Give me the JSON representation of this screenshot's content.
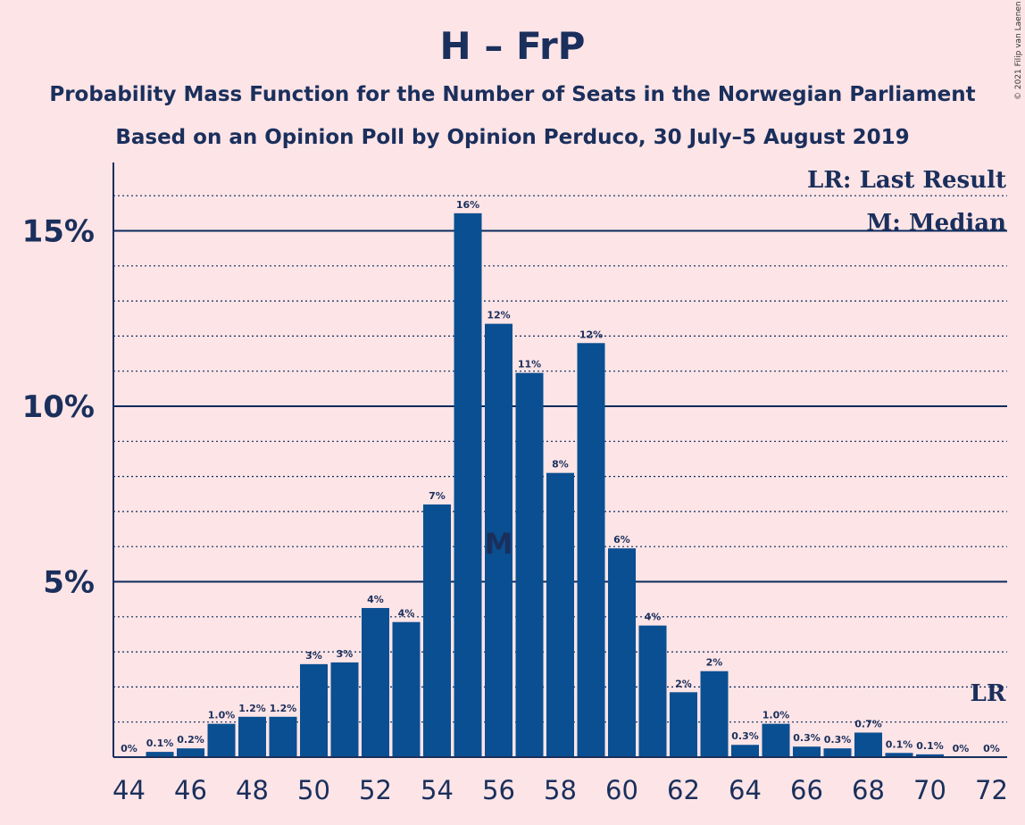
{
  "chart_data": {
    "type": "bar",
    "title": "H – FrP",
    "subtitle_1": "Probability Mass Function for the Number of Seats in the Norwegian Parliament",
    "subtitle_2": "Based on an Opinion Poll by Opinion Perduco, 30 July–5 August 2019",
    "copyright": "© 2021 Filip van Laenen",
    "legend": {
      "last_result": "LR: Last Result",
      "median": "M: Median",
      "placement": "top-right"
    },
    "median_marker": "M",
    "last_result_marker": "LR",
    "median_seat": 56,
    "last_result_seat": 72,
    "ylim": [
      0,
      17
    ],
    "ymajor": [
      5,
      10,
      15
    ],
    "ytick_labels": [
      "5%",
      "10%",
      "15%"
    ],
    "xticks": [
      44,
      46,
      48,
      50,
      52,
      54,
      56,
      58,
      60,
      62,
      64,
      66,
      68,
      70,
      72
    ],
    "bar_color": "#0a4f91",
    "grid_color": "#0a2a5c",
    "seats": [
      44,
      45,
      46,
      47,
      48,
      49,
      50,
      51,
      52,
      53,
      54,
      55,
      56,
      57,
      58,
      59,
      60,
      61,
      62,
      63,
      64,
      65,
      66,
      67,
      68,
      69,
      70,
      71,
      72
    ],
    "values": [
      0,
      0.15,
      0.25,
      0.95,
      1.15,
      1.15,
      2.65,
      2.7,
      4.25,
      3.85,
      7.2,
      15.5,
      12.35,
      10.95,
      8.1,
      11.8,
      5.95,
      3.75,
      1.85,
      2.45,
      0.35,
      0.95,
      0.3,
      0.25,
      0.7,
      0.12,
      0.08,
      0,
      0
    ],
    "labels": [
      "0%",
      "0.1%",
      "0.2%",
      "1.0%",
      "1.2%",
      "1.2%",
      "3%",
      "3%",
      "4%",
      "4%",
      "7%",
      "16%",
      "12%",
      "11%",
      "8%",
      "12%",
      "6%",
      "4%",
      "2%",
      "2%",
      "0.3%",
      "1.0%",
      "0.3%",
      "0.3%",
      "0.7%",
      "0.1%",
      "0.1%",
      "0%",
      "0%"
    ]
  }
}
